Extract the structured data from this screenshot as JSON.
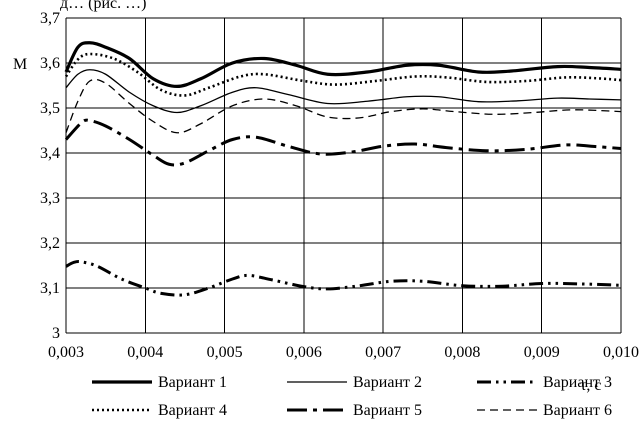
{
  "header_fragment": "д… (рис. …)",
  "chart_data": {
    "type": "line",
    "title": "",
    "ylabel": "M",
    "xlabel": "τ, с",
    "xlim": [
      0.003,
      0.01
    ],
    "ylim": [
      3.0,
      3.7
    ],
    "grid": true,
    "legend": "bottom",
    "x_tick_labels": [
      "0,003",
      "0,004",
      "0,005",
      "0,006",
      "0,007",
      "0,008",
      "0,009",
      "0,010"
    ],
    "y_tick_labels": [
      "3",
      "3,1",
      "3,2",
      "3,3",
      "3,4",
      "3,5",
      "3,6",
      "3,7"
    ],
    "x_ticks": [
      0.003,
      0.004,
      0.005,
      0.006,
      0.007,
      0.008,
      0.009,
      0.01
    ],
    "y_ticks": [
      3.0,
      3.1,
      3.2,
      3.3,
      3.4,
      3.5,
      3.6,
      3.7
    ],
    "series": [
      {
        "name": "Вариант 1",
        "style": "thick-solid",
        "points": [
          [
            0.003,
            3.58
          ],
          [
            0.00315,
            3.635
          ],
          [
            0.0033,
            3.645
          ],
          [
            0.0035,
            3.635
          ],
          [
            0.0038,
            3.61
          ],
          [
            0.0041,
            3.565
          ],
          [
            0.0044,
            3.548
          ],
          [
            0.0047,
            3.565
          ],
          [
            0.0051,
            3.6
          ],
          [
            0.0055,
            3.61
          ],
          [
            0.0059,
            3.595
          ],
          [
            0.0063,
            3.575
          ],
          [
            0.0068,
            3.58
          ],
          [
            0.0073,
            3.595
          ],
          [
            0.0077,
            3.595
          ],
          [
            0.0082,
            3.58
          ],
          [
            0.0086,
            3.582
          ],
          [
            0.0092,
            3.592
          ],
          [
            0.0096,
            3.59
          ],
          [
            0.01,
            3.586
          ]
        ]
      },
      {
        "name": "Вариант 2",
        "style": "thin-solid",
        "points": [
          [
            0.003,
            3.545
          ],
          [
            0.00315,
            3.575
          ],
          [
            0.0033,
            3.585
          ],
          [
            0.0035,
            3.575
          ],
          [
            0.0038,
            3.535
          ],
          [
            0.0041,
            3.505
          ],
          [
            0.0044,
            3.49
          ],
          [
            0.0047,
            3.505
          ],
          [
            0.0051,
            3.535
          ],
          [
            0.0054,
            3.545
          ],
          [
            0.0058,
            3.53
          ],
          [
            0.0063,
            3.51
          ],
          [
            0.0068,
            3.515
          ],
          [
            0.0073,
            3.525
          ],
          [
            0.0077,
            3.525
          ],
          [
            0.0082,
            3.514
          ],
          [
            0.0087,
            3.516
          ],
          [
            0.0092,
            3.522
          ],
          [
            0.0096,
            3.52
          ],
          [
            0.01,
            3.518
          ]
        ]
      },
      {
        "name": "Вариант 3",
        "style": "dash-dot-dot",
        "points": [
          [
            0.003,
            3.148
          ],
          [
            0.0031,
            3.157
          ],
          [
            0.0032,
            3.158
          ],
          [
            0.0034,
            3.148
          ],
          [
            0.0037,
            3.12
          ],
          [
            0.004,
            3.1
          ],
          [
            0.0042,
            3.088
          ],
          [
            0.0045,
            3.085
          ],
          [
            0.0048,
            3.1
          ],
          [
            0.0051,
            3.12
          ],
          [
            0.0053,
            3.128
          ],
          [
            0.0056,
            3.118
          ],
          [
            0.006,
            3.103
          ],
          [
            0.0063,
            3.098
          ],
          [
            0.0067,
            3.105
          ],
          [
            0.0071,
            3.115
          ],
          [
            0.0075,
            3.115
          ],
          [
            0.008,
            3.105
          ],
          [
            0.0085,
            3.104
          ],
          [
            0.009,
            3.11
          ],
          [
            0.0095,
            3.109
          ],
          [
            0.01,
            3.106
          ]
        ]
      },
      {
        "name": "Вариант 4",
        "style": "dotted",
        "points": [
          [
            0.003,
            3.57
          ],
          [
            0.00315,
            3.608
          ],
          [
            0.0033,
            3.62
          ],
          [
            0.0036,
            3.61
          ],
          [
            0.0039,
            3.58
          ],
          [
            0.0042,
            3.54
          ],
          [
            0.0045,
            3.528
          ],
          [
            0.0048,
            3.545
          ],
          [
            0.0052,
            3.57
          ],
          [
            0.0055,
            3.575
          ],
          [
            0.006,
            3.56
          ],
          [
            0.0064,
            3.552
          ],
          [
            0.0069,
            3.56
          ],
          [
            0.0074,
            3.57
          ],
          [
            0.0078,
            3.568
          ],
          [
            0.0083,
            3.558
          ],
          [
            0.0088,
            3.56
          ],
          [
            0.0093,
            3.568
          ],
          [
            0.0097,
            3.566
          ],
          [
            0.01,
            3.562
          ]
        ]
      },
      {
        "name": "Вариант 5",
        "style": "long-dash-dot",
        "points": [
          [
            0.003,
            3.43
          ],
          [
            0.0032,
            3.468
          ],
          [
            0.0033,
            3.472
          ],
          [
            0.0035,
            3.46
          ],
          [
            0.0038,
            3.43
          ],
          [
            0.0041,
            3.395
          ],
          [
            0.0043,
            3.375
          ],
          [
            0.0045,
            3.378
          ],
          [
            0.0048,
            3.405
          ],
          [
            0.0051,
            3.43
          ],
          [
            0.0054,
            3.435
          ],
          [
            0.0058,
            3.415
          ],
          [
            0.0062,
            3.398
          ],
          [
            0.0066,
            3.402
          ],
          [
            0.007,
            3.415
          ],
          [
            0.0074,
            3.42
          ],
          [
            0.0078,
            3.412
          ],
          [
            0.0083,
            3.405
          ],
          [
            0.0088,
            3.408
          ],
          [
            0.0093,
            3.418
          ],
          [
            0.0097,
            3.414
          ],
          [
            0.01,
            3.41
          ]
        ]
      },
      {
        "name": "Вариант 6",
        "style": "dashed",
        "points": [
          [
            0.003,
            3.445
          ],
          [
            0.00315,
            3.515
          ],
          [
            0.0033,
            3.56
          ],
          [
            0.0035,
            3.555
          ],
          [
            0.0038,
            3.51
          ],
          [
            0.0041,
            3.47
          ],
          [
            0.0044,
            3.445
          ],
          [
            0.0047,
            3.465
          ],
          [
            0.0051,
            3.505
          ],
          [
            0.0055,
            3.52
          ],
          [
            0.0059,
            3.505
          ],
          [
            0.0063,
            3.48
          ],
          [
            0.0067,
            3.478
          ],
          [
            0.0071,
            3.492
          ],
          [
            0.0075,
            3.498
          ],
          [
            0.0079,
            3.492
          ],
          [
            0.0084,
            3.486
          ],
          [
            0.0089,
            3.49
          ],
          [
            0.0094,
            3.496
          ],
          [
            0.01,
            3.492
          ]
        ]
      }
    ]
  }
}
